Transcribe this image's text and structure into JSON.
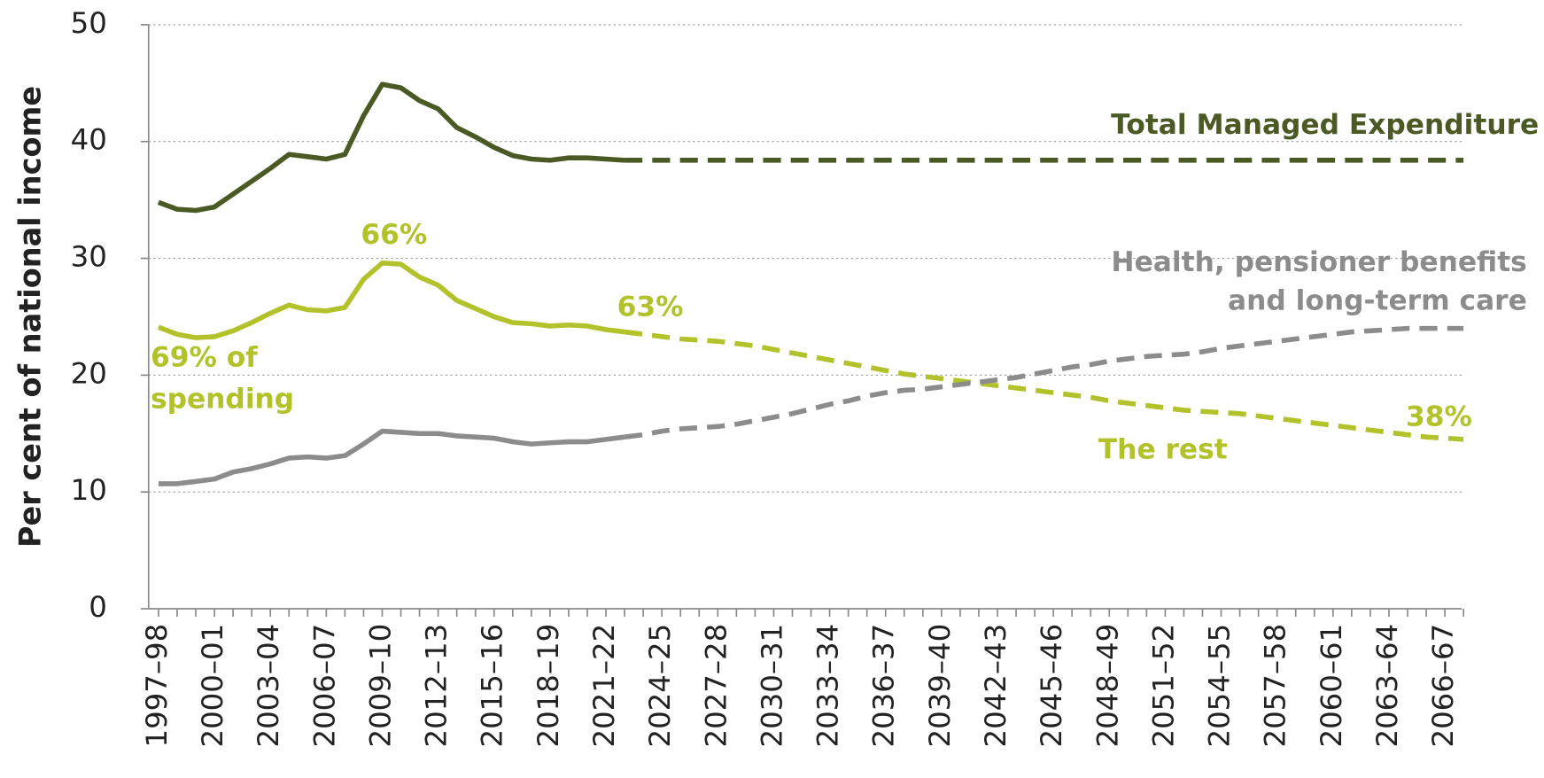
{
  "chart_data": {
    "type": "line",
    "ylabel": "Per cent of national income",
    "categories": [
      "1997–98",
      null,
      null,
      "2000–01",
      null,
      null,
      "2003–04",
      null,
      null,
      "2006–07",
      null,
      null,
      "2009–10",
      null,
      null,
      "2012–13",
      null,
      null,
      "2015–16",
      null,
      null,
      "2018–19",
      null,
      null,
      "2021–22",
      null,
      null,
      "2024–25",
      null,
      null,
      "2027–28",
      null,
      null,
      "2030–31",
      null,
      null,
      "2033–34",
      null,
      null,
      "2036–37",
      null,
      null,
      "2039–40",
      null,
      null,
      "2042–43",
      null,
      null,
      "2045–46",
      null,
      null,
      "2048–49",
      null,
      null,
      "2051–52",
      null,
      null,
      "2054–55",
      null,
      null,
      "2057–58",
      null,
      null,
      "2060–61",
      null,
      null,
      "2063–64",
      null,
      null,
      "2066–67",
      null
    ],
    "ylim": [
      0,
      50
    ],
    "yticks": [
      0,
      10,
      20,
      30,
      40,
      50
    ],
    "grid": true,
    "series": [
      {
        "name": [
          "Total Managed Expenditure"
        ],
        "color": "#4b5a24",
        "values": [
          34.8,
          34.2,
          34.1,
          34.4,
          35.5,
          36.6,
          37.7,
          38.9,
          38.7,
          38.5,
          38.9,
          42.2,
          44.9,
          44.6,
          43.5,
          42.8,
          41.2,
          40.4,
          39.5,
          38.8,
          38.5,
          38.4,
          38.6,
          38.6,
          38.5,
          38.4,
          null,
          null,
          null,
          null,
          null,
          null,
          null,
          null,
          null,
          null,
          null,
          null,
          null,
          null,
          null,
          null,
          null,
          null,
          null,
          null,
          null,
          null,
          null,
          null,
          null,
          null,
          null,
          null,
          null,
          null,
          null,
          null,
          null,
          null,
          null,
          null,
          null,
          null,
          null,
          null,
          null,
          null,
          null,
          null,
          null
        ],
        "projection": [
          null,
          null,
          null,
          null,
          null,
          null,
          null,
          null,
          null,
          null,
          null,
          null,
          null,
          null,
          null,
          null,
          null,
          null,
          null,
          null,
          null,
          null,
          null,
          null,
          null,
          38.4,
          38.4,
          38.4,
          38.4,
          38.4,
          38.4,
          38.4,
          38.4,
          38.4,
          38.4,
          38.4,
          38.4,
          38.4,
          38.4,
          38.4,
          38.4,
          38.4,
          38.4,
          38.4,
          38.4,
          38.4,
          38.4,
          38.4,
          38.4,
          38.4,
          38.4,
          38.4,
          38.4,
          38.4,
          38.4,
          38.4,
          38.4,
          38.4,
          38.4,
          38.4,
          38.4,
          38.4,
          38.4,
          38.4,
          38.4,
          38.4,
          38.4,
          38.4,
          38.4,
          38.4,
          38.4
        ]
      },
      {
        "name": [
          "The rest"
        ],
        "color": "#b2c22a",
        "values": [
          24.1,
          23.5,
          23.2,
          23.3,
          23.8,
          24.5,
          25.3,
          26.0,
          25.6,
          25.5,
          25.8,
          28.2,
          29.6,
          29.5,
          28.4,
          27.7,
          26.4,
          25.7,
          25.0,
          24.5,
          24.4,
          24.2,
          24.3,
          24.2,
          23.9,
          23.7,
          null,
          null,
          null,
          null,
          null,
          null,
          null,
          null,
          null,
          null,
          null,
          null,
          null,
          null,
          null,
          null,
          null,
          null,
          null,
          null,
          null,
          null,
          null,
          null,
          null,
          null,
          null,
          null,
          null,
          null,
          null,
          null,
          null,
          null,
          null,
          null,
          null,
          null,
          null,
          null,
          null,
          null,
          null,
          null,
          null
        ],
        "projection": [
          null,
          null,
          null,
          null,
          null,
          null,
          null,
          null,
          null,
          null,
          null,
          null,
          null,
          null,
          null,
          null,
          null,
          null,
          null,
          null,
          null,
          null,
          null,
          null,
          null,
          23.7,
          23.5,
          23.3,
          23.1,
          23.0,
          22.9,
          22.7,
          22.5,
          22.2,
          21.9,
          21.6,
          21.3,
          21.0,
          20.7,
          20.4,
          20.1,
          19.9,
          19.7,
          19.5,
          19.3,
          19.1,
          18.9,
          18.7,
          18.5,
          18.3,
          18.1,
          17.8,
          17.6,
          17.4,
          17.2,
          17.0,
          16.9,
          16.8,
          16.7,
          16.5,
          16.3,
          16.1,
          15.9,
          15.7,
          15.5,
          15.3,
          15.1,
          14.9,
          14.7,
          14.6,
          14.5
        ]
      },
      {
        "name": [
          "Health, pensioner benefits",
          "and long-term care"
        ],
        "color": "#8c8c8c",
        "values": [
          10.7,
          10.7,
          10.9,
          11.1,
          11.7,
          12.0,
          12.4,
          12.9,
          13.0,
          12.9,
          13.1,
          14.1,
          15.2,
          15.1,
          15.0,
          15.0,
          14.8,
          14.7,
          14.6,
          14.3,
          14.1,
          14.2,
          14.3,
          14.3,
          14.5,
          14.7,
          null,
          null,
          null,
          null,
          null,
          null,
          null,
          null,
          null,
          null,
          null,
          null,
          null,
          null,
          null,
          null,
          null,
          null,
          null,
          null,
          null,
          null,
          null,
          null,
          null,
          null,
          null,
          null,
          null,
          null,
          null,
          null,
          null,
          null,
          null,
          null,
          null,
          null,
          null,
          null,
          null,
          null,
          null,
          null,
          null
        ],
        "projection": [
          null,
          null,
          null,
          null,
          null,
          null,
          null,
          null,
          null,
          null,
          null,
          null,
          null,
          null,
          null,
          null,
          null,
          null,
          null,
          null,
          null,
          null,
          null,
          null,
          null,
          14.7,
          14.9,
          15.2,
          15.4,
          15.5,
          15.6,
          15.8,
          16.1,
          16.4,
          16.7,
          17.1,
          17.5,
          17.8,
          18.2,
          18.5,
          18.7,
          18.8,
          19.0,
          19.2,
          19.4,
          19.6,
          19.8,
          20.1,
          20.4,
          20.7,
          20.9,
          21.2,
          21.4,
          21.6,
          21.7,
          21.8,
          22.0,
          22.3,
          22.5,
          22.7,
          22.9,
          23.1,
          23.3,
          23.5,
          23.7,
          23.8,
          23.9,
          24.0,
          24.0,
          24.0,
          24.0
        ]
      }
    ],
    "annotations": [
      {
        "text": [
          "66%"
        ],
        "color": "#b2c22a"
      },
      {
        "text": [
          "63%"
        ],
        "color": "#b2c22a"
      },
      {
        "text": [
          "69% of",
          "spending"
        ],
        "color": "#b2c22a"
      },
      {
        "text": [
          "38%"
        ],
        "color": "#b2c22a"
      }
    ]
  }
}
